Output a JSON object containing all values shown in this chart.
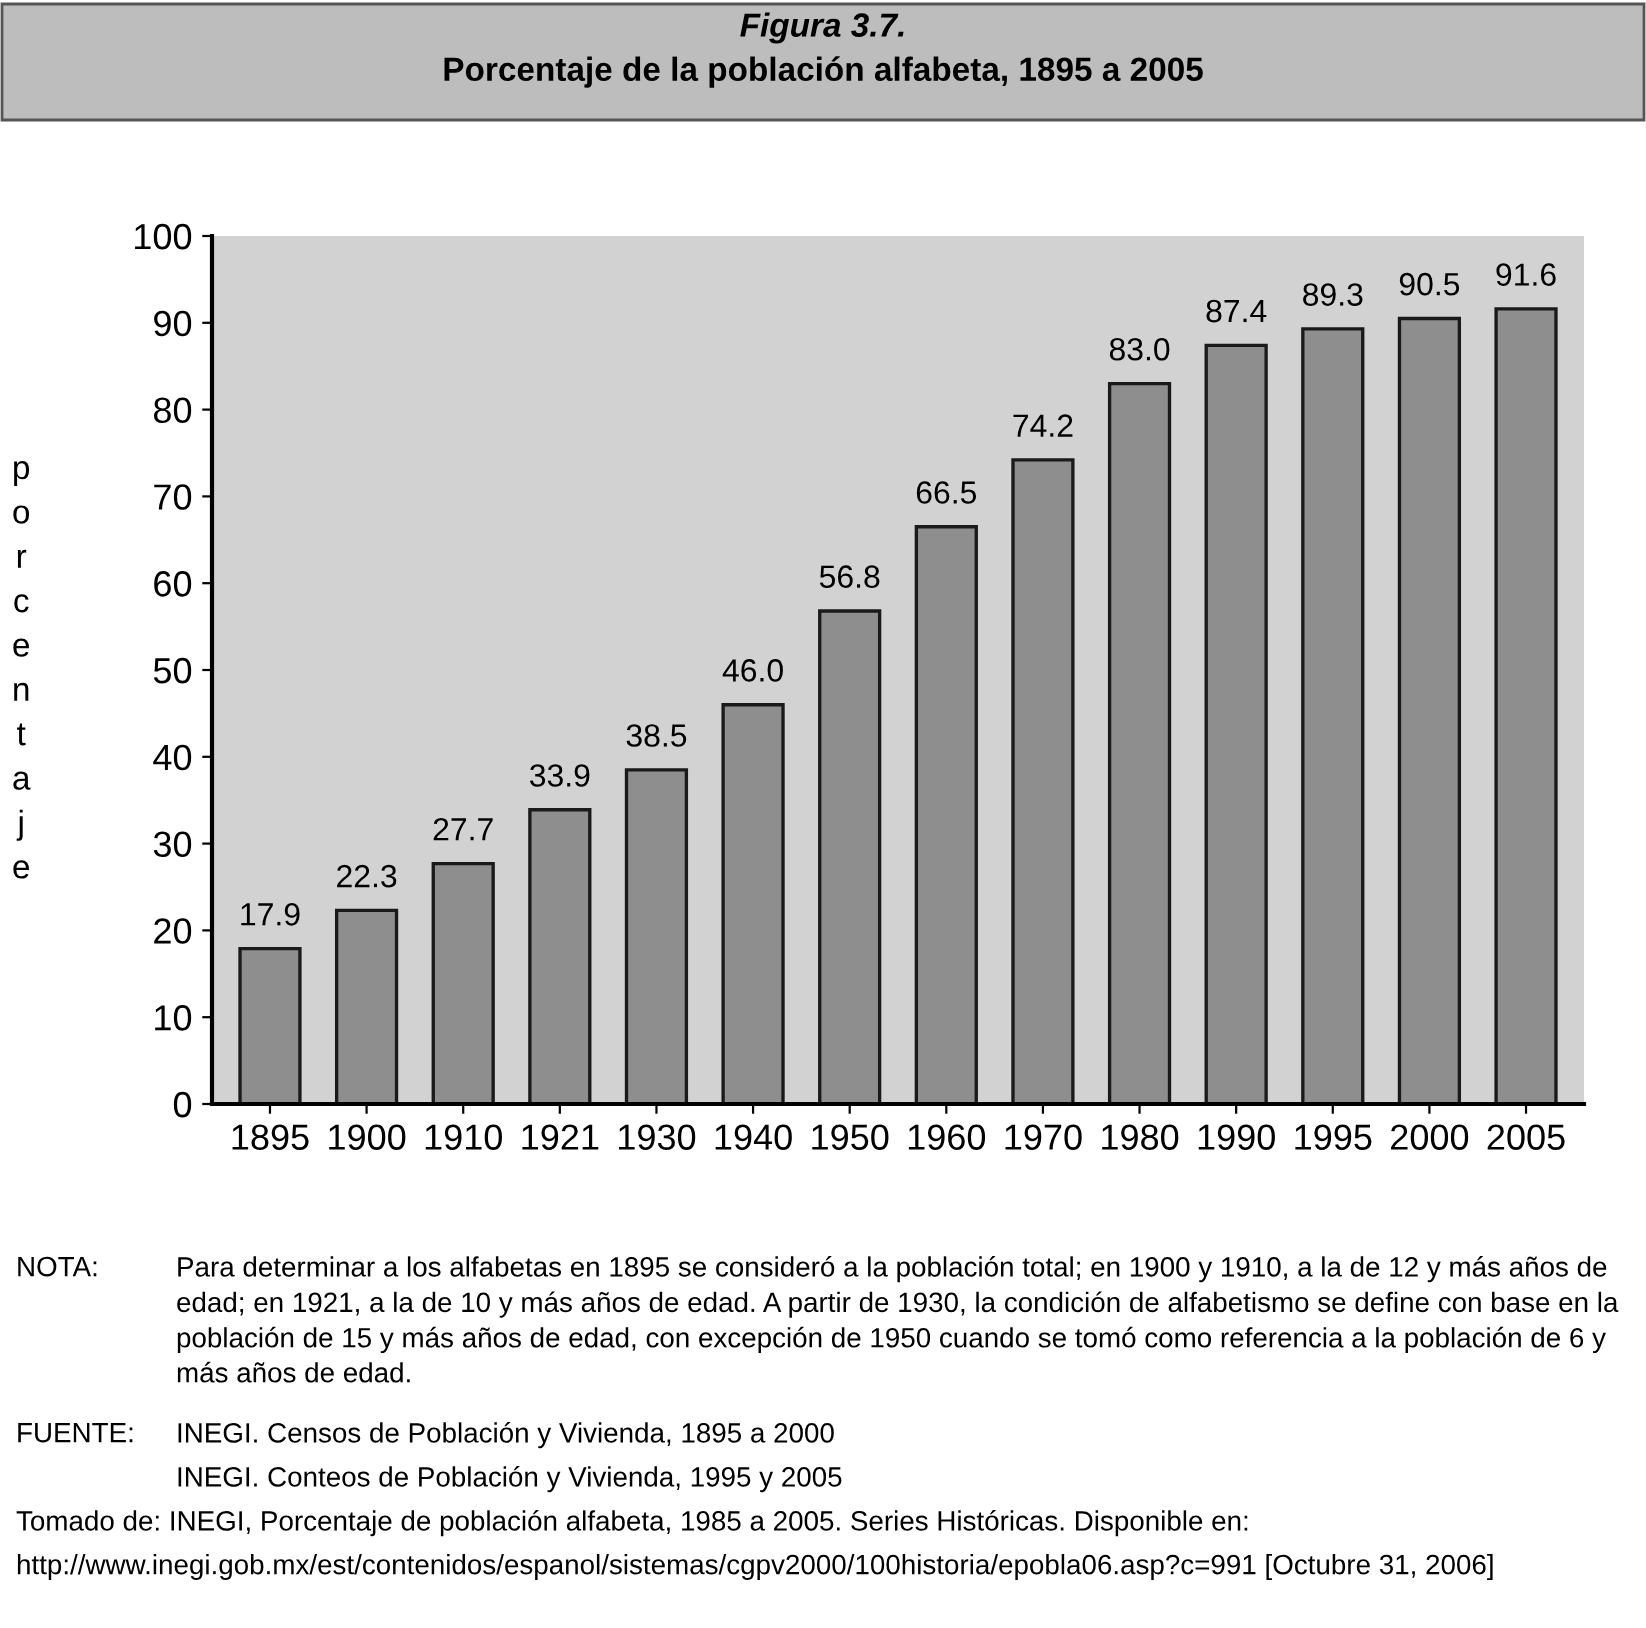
{
  "chart_data": {
    "type": "bar",
    "title": "Figura 3.7.",
    "subtitle": "Porcentaje de la población alfabeta, 1895 a 2005",
    "ylabel": "porcentaje",
    "categories": [
      "1895",
      "1900",
      "1910",
      "1921",
      "1930",
      "1940",
      "1950",
      "1960",
      "1970",
      "1980",
      "1990",
      "1995",
      "2000",
      "2005"
    ],
    "values": [
      17.9,
      22.3,
      27.7,
      33.9,
      38.5,
      46.0,
      56.8,
      66.5,
      74.2,
      83.0,
      87.4,
      89.3,
      90.5,
      91.6
    ],
    "value_labels": [
      "17.9",
      "22.3",
      "27.7",
      "33.9",
      "38.5",
      "46.0",
      "56.8",
      "66.5",
      "74.2",
      "83.0",
      "87.4",
      "89.3",
      "90.5",
      "91.6"
    ],
    "color": "#8e8e8e",
    "ylim": [
      0,
      100
    ],
    "yticks": [
      0,
      10,
      20,
      30,
      40,
      50,
      60,
      70,
      80,
      90,
      100
    ],
    "grid": false,
    "annotations": [
      "NOTA:",
      "Para determinar a los alfabetas en 1895 se consideró a la población total; en 1900 y 1910, a la de 12 y más años de edad; en 1921, a la de 10 y más años de edad. A partir de 1930, la condición de alfabetismo se define con base en la población de 15 y más años de edad, con excepción de 1950 cuando se tomó como referencia a la población de 6 y más años de edad.",
      "FUENTE:",
      "INEGI. Censos de Población y Vivienda, 1895 a 2000",
      "INEGI. Conteos de Población y Vivienda, 1995 y 2005",
      "Tomado de: INEGI, Porcentaje de población alfabeta, 1985 a 2005. Series Históricas. Disponible en:",
      "http://www.inegi.gob.mx/est/contenidos/espanol/sistemas/cgpv2000/100historia/epobla06.asp?c=991 [Octubre 31, 2006]"
    ]
  }
}
